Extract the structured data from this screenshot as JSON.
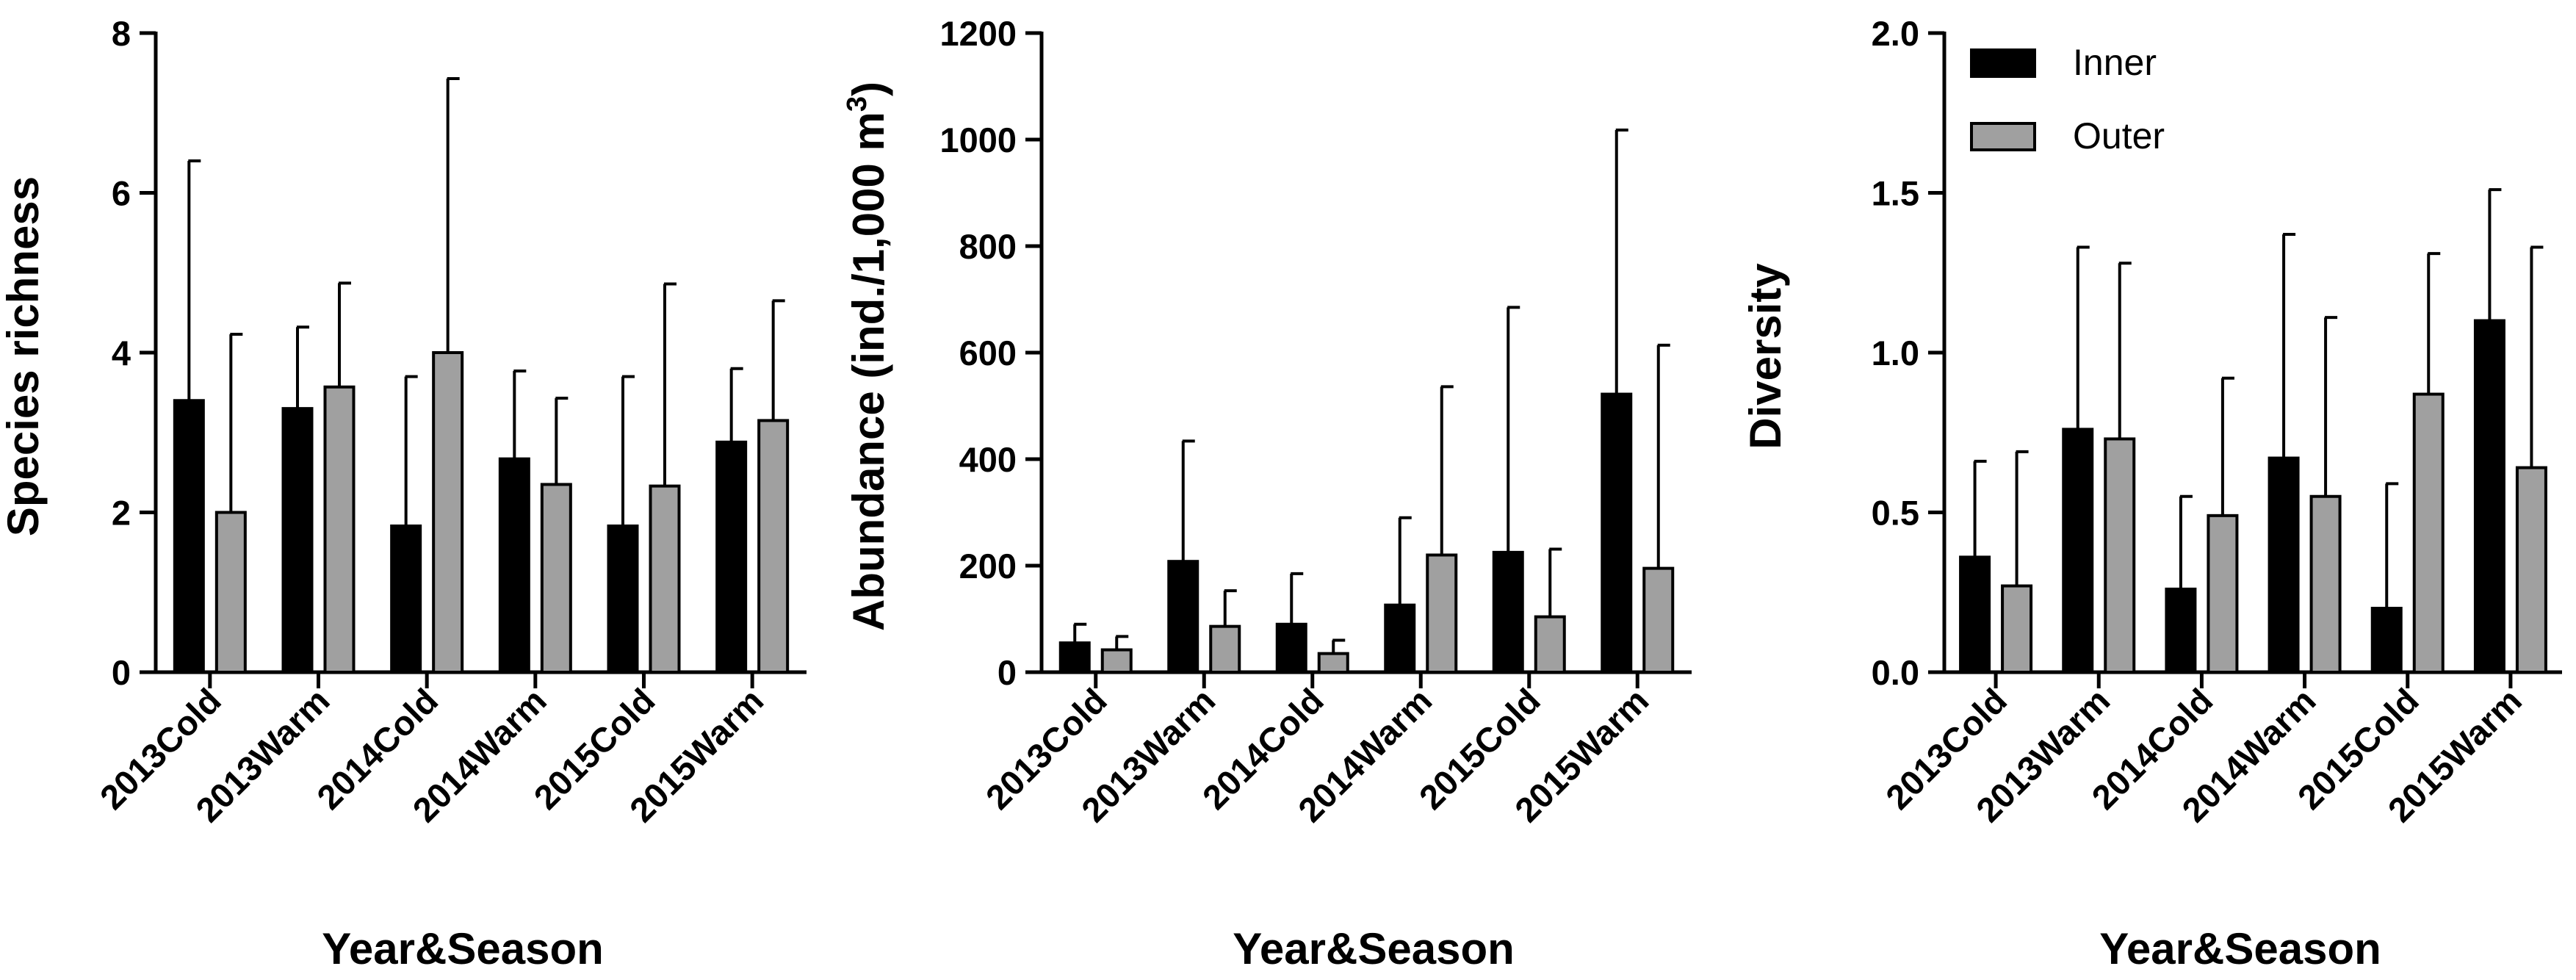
{
  "colors": {
    "inner": "#000000",
    "outer": "#a0a0a0",
    "axis": "#000000"
  },
  "legend": {
    "placement": "top-left of third panel",
    "entries": [
      "Inner",
      "Outer"
    ]
  },
  "chart_data": [
    {
      "type": "bar",
      "title": "",
      "xlabel": "Year&Season",
      "ylabel": "Species richness",
      "ylabel_sup": "",
      "ylabel_tail": "",
      "ylim": [
        0,
        8
      ],
      "yticks": [
        "0",
        "2",
        "4",
        "6",
        "8"
      ],
      "categories": [
        "2013Cold",
        "2013Warm",
        "2014Cold",
        "2014Warm",
        "2015Cold",
        "2015Warm"
      ],
      "series": [
        {
          "name": "Inner",
          "values": [
            3.4,
            3.3,
            1.83,
            2.67,
            1.83,
            2.88
          ],
          "errors": [
            3.0,
            1.02,
            1.87,
            1.1,
            1.87,
            0.92
          ]
        },
        {
          "name": "Outer",
          "values": [
            2.0,
            3.57,
            4.0,
            2.35,
            2.33,
            3.15
          ],
          "errors": [
            2.23,
            1.3,
            3.43,
            1.08,
            2.53,
            1.5
          ]
        }
      ]
    },
    {
      "type": "bar",
      "title": "",
      "xlabel": "Year&Season",
      "ylabel": "Abundance (ind./1,000 m",
      "ylabel_sup": "3",
      "ylabel_tail": ")",
      "ylim": [
        0,
        1200
      ],
      "yticks": [
        "0",
        "200",
        "400",
        "600",
        "800",
        "1000",
        "1200"
      ],
      "categories": [
        "2013Cold",
        "2013Warm",
        "2014Cold",
        "2014Warm",
        "2015Cold",
        "2015Warm"
      ],
      "series": [
        {
          "name": "Inner",
          "values": [
            55,
            208,
            90,
            126,
            225,
            522
          ],
          "errors": [
            35,
            226,
            95,
            164,
            460,
            496
          ]
        },
        {
          "name": "Outer",
          "values": [
            42,
            86,
            35,
            220,
            104,
            195
          ],
          "errors": [
            25,
            67,
            25,
            316,
            127,
            419
          ]
        }
      ]
    },
    {
      "type": "bar",
      "title": "",
      "xlabel": "Year&Season",
      "ylabel": "Diversity",
      "ylabel_sup": "",
      "ylabel_tail": "",
      "ylim": [
        0,
        2.0
      ],
      "yticks": [
        "0.0",
        "0.5",
        "1.0",
        "1.5",
        "2.0"
      ],
      "categories": [
        "2013Cold",
        "2013Warm",
        "2014Cold",
        "2014Warm",
        "2015Cold",
        "2015Warm"
      ],
      "series": [
        {
          "name": "Inner",
          "values": [
            0.36,
            0.76,
            0.26,
            0.67,
            0.2,
            1.1
          ],
          "errors": [
            0.3,
            0.57,
            0.29,
            0.7,
            0.39,
            0.41
          ]
        },
        {
          "name": "Outer",
          "values": [
            0.27,
            0.73,
            0.49,
            0.55,
            0.87,
            0.64
          ],
          "errors": [
            0.42,
            0.55,
            0.43,
            0.56,
            0.44,
            0.69
          ]
        }
      ]
    }
  ]
}
